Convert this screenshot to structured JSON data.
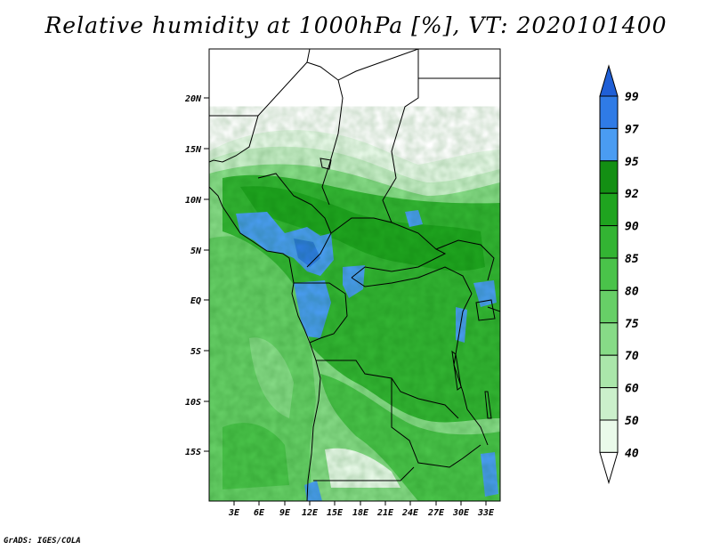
{
  "title": "Relative humidity at 1000hPa [%], VT: 2020101400",
  "credit": "GrADS: IGES/COLA",
  "map": {
    "lat_labels": [
      "20N",
      "15N",
      "10N",
      "5N",
      "EQ",
      "5S",
      "10S",
      "15S"
    ],
    "lon_labels": [
      "3E",
      "6E",
      "9E",
      "12E",
      "15E",
      "18E",
      "21E",
      "24E",
      "27E",
      "30E",
      "33E"
    ]
  },
  "colorbar": {
    "levels": [
      "99",
      "97",
      "95",
      "92",
      "90",
      "85",
      "80",
      "75",
      "70",
      "60",
      "50",
      "40"
    ],
    "colors": [
      "#1f5fd6",
      "#2f7be6",
      "#4a9cf2",
      "#138f13",
      "#1fa41f",
      "#33b433",
      "#4ac34a",
      "#67cf67",
      "#87db87",
      "#aae6aa",
      "#cbf0cb",
      "#eafaea"
    ]
  }
}
